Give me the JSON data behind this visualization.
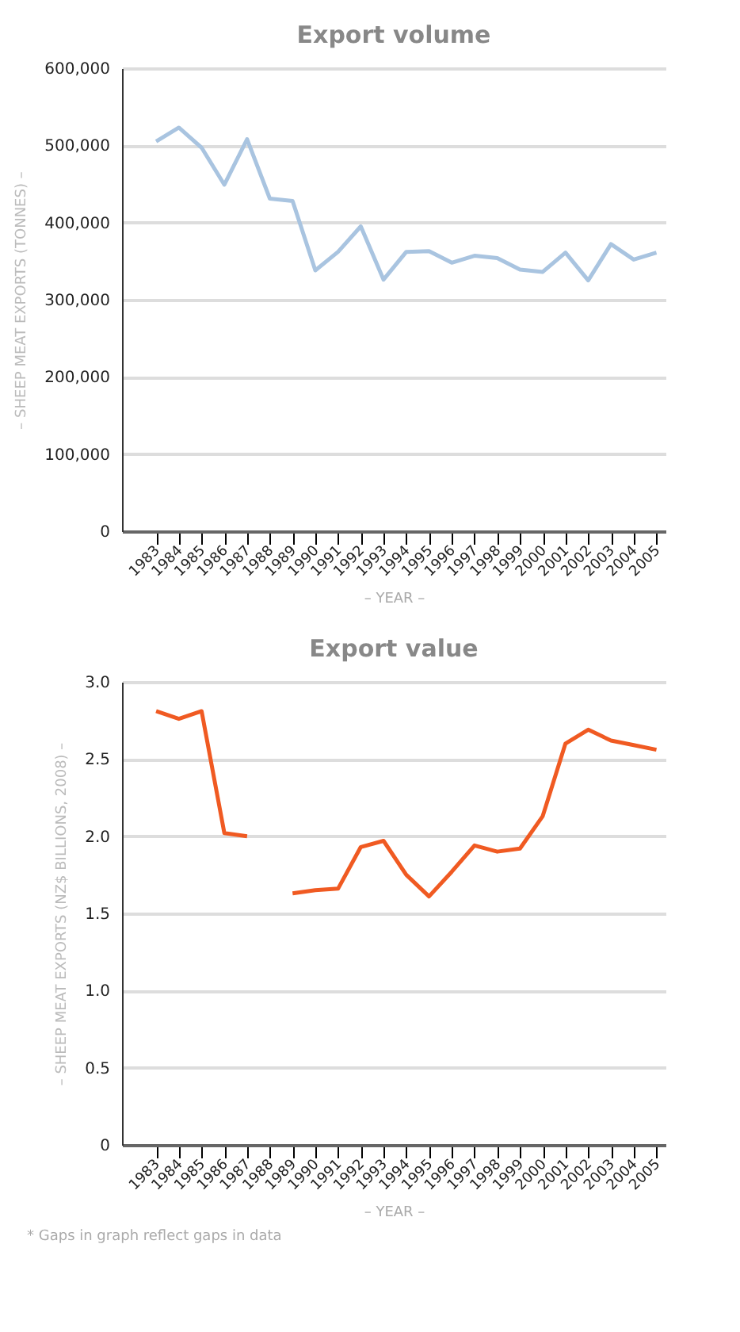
{
  "chart_data": [
    {
      "type": "line",
      "title": "Export volume",
      "xlabel": "– YEAR –",
      "ylabel": "– SHEEP MEAT EXPORTS (TONNES) –",
      "categories": [
        "1983",
        "1984",
        "1985",
        "1986",
        "1987",
        "1988",
        "1989",
        "1990",
        "1991",
        "1992",
        "1993",
        "1994",
        "1995",
        "1996",
        "1997",
        "1998",
        "1999",
        "2000",
        "2001",
        "2002",
        "2003",
        "2004",
        "2005"
      ],
      "series": [
        {
          "color": "#a9c4e0",
          "values": [
            505000,
            523000,
            497000,
            449000,
            508000,
            431000,
            428000,
            338000,
            362000,
            395000,
            326000,
            362000,
            363000,
            348000,
            357000,
            354000,
            339000,
            336000,
            361000,
            325000,
            372000,
            352000,
            361000
          ]
        }
      ],
      "ylim": [
        0,
        600000
      ],
      "yticks": [
        0,
        {
          "value": 100000,
          "label": "100,000"
        },
        {
          "value": 200000,
          "label": "200,000"
        },
        {
          "value": 300000,
          "label": "300,000"
        },
        {
          "value": 400000,
          "label": "400,000"
        },
        {
          "value": 500000,
          "label": "500,000"
        },
        {
          "value": 600000,
          "label": "600,000"
        }
      ],
      "grid": "y",
      "marker": "none",
      "line_style": "solid"
    },
    {
      "type": "line",
      "title": "Export value",
      "xlabel": "– YEAR –",
      "ylabel": "– SHEEP MEAT EXPORTS (NZ$ BILLIONS, 2008) –",
      "categories": [
        "1983",
        "1984",
        "1985",
        "1986",
        "1987",
        "1988",
        "1989",
        "1990",
        "1991",
        "1992",
        "1993",
        "1994",
        "1995",
        "1996",
        "1997",
        "1998",
        "1999",
        "2000",
        "2001",
        "2002",
        "2003",
        "2004",
        "2005"
      ],
      "series": [
        {
          "color": "#f05a22",
          "values": [
            2.81,
            2.76,
            2.81,
            2.02,
            2.0,
            null,
            1.63,
            1.65,
            1.66,
            1.93,
            1.97,
            1.75,
            1.61,
            1.77,
            1.94,
            1.9,
            1.92,
            2.13,
            2.6,
            2.69,
            2.62,
            2.59,
            2.56
          ]
        }
      ],
      "ylim": [
        0,
        3.0
      ],
      "yticks": [
        0,
        0.5,
        {
          "value": 1,
          "label": "1.0"
        },
        1.5,
        {
          "value": 2,
          "label": "2.0"
        },
        2.5,
        {
          "value": 3,
          "label": "3.0"
        }
      ],
      "grid": "y",
      "marker": "none",
      "line_style": "solid",
      "annotations": [
        "* Gaps in graph reflect gaps in data"
      ]
    }
  ]
}
